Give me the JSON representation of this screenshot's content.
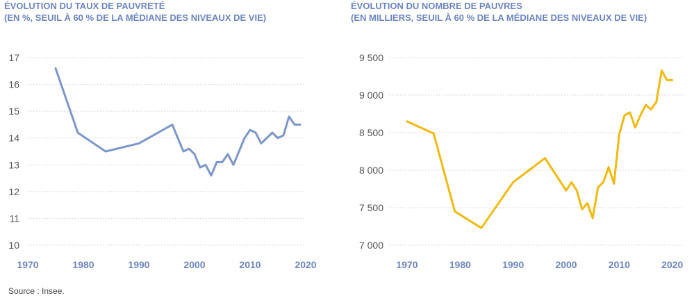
{
  "charts_header": {
    "left_title_line1": "ÉVOLUTION DU TAUX DE PAUVRETÉ",
    "left_title_line2": "(EN %, SEUIL À 60 % DE LA MÉDIANE DES NIVEAUX DE VIE)",
    "right_title_line1": "ÉVOLUTION DU NOMBRE DE PAUVRES",
    "right_title_line2": "(EN MILLIERS, SEUIL À 60 % DE LA MÉDIANE DES NIVEAUX DE VIE)"
  },
  "source": "Source : Insee.",
  "colors": {
    "title": "#6b85c1",
    "series_left": "#7b96c9",
    "series_right": "#f2b90f",
    "grid": "#cfcfcf"
  },
  "chart_data": [
    {
      "type": "line",
      "title": "ÉVOLUTION DU TAUX DE PAUVRETÉ",
      "subtitle": "(EN %, SEUIL À 60 % DE LA MÉDIANE DES NIVEAUX DE VIE)",
      "xlabel": "",
      "ylabel": "",
      "xlim": [
        1970,
        2020
      ],
      "ylim": [
        10,
        17
      ],
      "xticks": [
        1970,
        1980,
        1990,
        2000,
        2010,
        2020
      ],
      "xtick_labels": [
        "1970",
        "1980",
        "1990",
        "2000",
        "2010",
        "2020"
      ],
      "yticks": [
        10,
        11,
        12,
        13,
        14,
        15,
        16,
        17
      ],
      "ytick_labels": [
        "10",
        "11",
        "12",
        "13",
        "14",
        "15",
        "16",
        "17"
      ],
      "grid": true,
      "series": [
        {
          "x": [
            1975,
            1979,
            1984,
            1990,
            1996,
            1998,
            1999,
            2000,
            2001,
            2002,
            2003,
            2004,
            2005,
            2006,
            2007,
            2008,
            2009,
            2010,
            2011,
            2012,
            2013,
            2014,
            2015,
            2016,
            2017,
            2018,
            2019
          ],
          "values": [
            16.6,
            14.2,
            13.5,
            13.8,
            14.5,
            13.5,
            13.6,
            13.4,
            12.9,
            13.0,
            12.6,
            13.1,
            13.1,
            13.4,
            13.0,
            13.5,
            14.0,
            14.3,
            14.2,
            13.8,
            14.0,
            14.2,
            14.0,
            14.1,
            14.8,
            14.5,
            14.5
          ]
        }
      ]
    },
    {
      "type": "line",
      "title": "ÉVOLUTION DU NOMBRE DE PAUVRES",
      "subtitle": "(EN MILLIERS, SEUIL À 60 % DE LA MÉDIANE DES NIVEAUX DE VIE)",
      "xlabel": "",
      "ylabel": "",
      "xlim": [
        1970,
        2022
      ],
      "ylim": [
        7000,
        9500
      ],
      "xticks": [
        1970,
        1980,
        1990,
        2000,
        2010,
        2020
      ],
      "xtick_labels": [
        "1970",
        "1980",
        "1990",
        "2000",
        "2010",
        "2020"
      ],
      "yticks": [
        7000,
        7500,
        8000,
        8500,
        9000,
        9500
      ],
      "ytick_labels": [
        "7 000",
        "7 500",
        "8 000",
        "8 500",
        "9 000",
        "9 500"
      ],
      "grid": true,
      "series": [
        {
          "x": [
            1970,
            1975,
            1979,
            1984,
            1990,
            1996,
            2000,
            2001,
            2002,
            2003,
            2004,
            2005,
            2006,
            2007,
            2008,
            2009,
            2010,
            2011,
            2012,
            2013,
            2014,
            2015,
            2016,
            2017,
            2018,
            2019,
            2020
          ],
          "values": [
            8650,
            8490,
            7450,
            7230,
            7840,
            8160,
            7730,
            7840,
            7730,
            7480,
            7560,
            7360,
            7770,
            7840,
            8040,
            7820,
            8480,
            8730,
            8770,
            8570,
            8730,
            8870,
            8810,
            8910,
            9330,
            9200,
            9200
          ]
        }
      ]
    }
  ]
}
